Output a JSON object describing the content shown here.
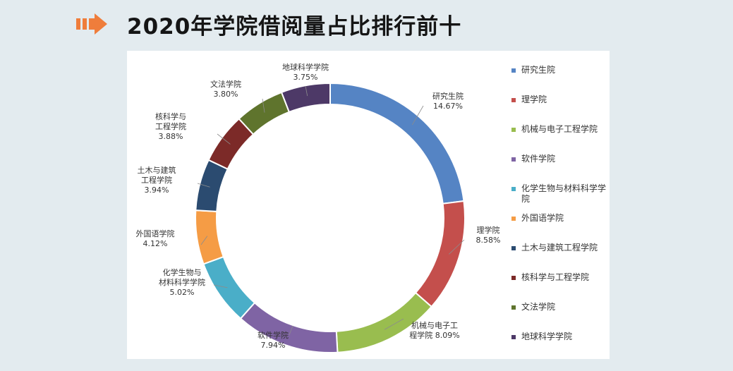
{
  "header": {
    "title": "2020年学院借阅量占比排行前十",
    "arrow_icon": "arrow-right-icon",
    "arrow_color": "#ef7d3b"
  },
  "chart_data": {
    "type": "pie",
    "variant": "donut",
    "title": "",
    "legend_position": "right",
    "series": [
      {
        "name": "研究生院",
        "label": "研究生院",
        "value": 14.67,
        "value_label": "14.67%",
        "color": "#5584c4"
      },
      {
        "name": "理学院",
        "label": "理学院",
        "value": 8.58,
        "value_label": "8.58%",
        "color": "#c44f4c"
      },
      {
        "name": "机械与电子工程学院",
        "label": "机械与电子工程学院",
        "value": 8.09,
        "value_label": "8.09%",
        "color": "#99bd4f"
      },
      {
        "name": "软件学院",
        "label": "软件学院",
        "value": 7.94,
        "value_label": "7.94%",
        "color": "#7f64a4"
      },
      {
        "name": "化学生物与材料科学学院",
        "label": "化学生物与材料科学学院",
        "value": 5.02,
        "value_label": "5.02%",
        "color": "#4aaec8"
      },
      {
        "name": "外国语学院",
        "label": "外国语学院",
        "value": 4.12,
        "value_label": "4.12%",
        "color": "#f59c45"
      },
      {
        "name": "土木与建筑工程学院",
        "label": "土木与建筑工程学院",
        "value": 3.94,
        "value_label": "3.94%",
        "color": "#2b4b70"
      },
      {
        "name": "核科学与工程学院",
        "label": "核科学与工程学院",
        "value": 3.88,
        "value_label": "3.88%",
        "color": "#7c2a28"
      },
      {
        "name": "文法学院",
        "label": "文法学院",
        "value": 3.8,
        "value_label": "3.80%",
        "color": "#5f742d"
      },
      {
        "name": "地球科学学院",
        "label": "地球科学学院",
        "value": 3.75,
        "value_label": "3.75%",
        "color": "#4d3967"
      }
    ]
  }
}
